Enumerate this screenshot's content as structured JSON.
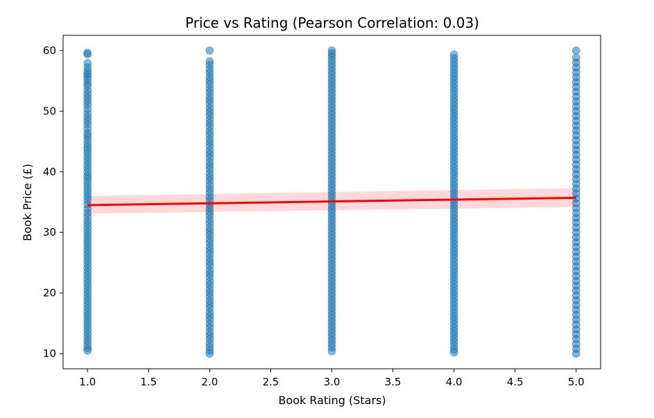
{
  "chart_data": {
    "type": "scatter",
    "title": "Price vs Rating (Pearson Correlation: 0.03)",
    "xlabel": "Book Rating (Stars)",
    "ylabel": "Book Price (£)",
    "xlim": [
      0.8,
      5.2
    ],
    "ylim": [
      7.5,
      62.5
    ],
    "xticks": [
      1.0,
      1.5,
      2.0,
      2.5,
      3.0,
      3.5,
      4.0,
      4.5,
      5.0
    ],
    "xtick_labels": [
      "1.0",
      "1.5",
      "2.0",
      "2.5",
      "3.0",
      "3.5",
      "4.0",
      "4.5",
      "5.0"
    ],
    "yticks": [
      10,
      20,
      30,
      40,
      50,
      60
    ],
    "ytick_labels": [
      "10",
      "20",
      "30",
      "40",
      "50",
      "60"
    ],
    "grid": false,
    "legend": false,
    "marker_color": "#1f77b4",
    "marker_alpha": 0.55,
    "line_color": "#ff0000",
    "band_color": "#ff0000",
    "series": [
      {
        "x": 1,
        "y": [
          59.6,
          59.4,
          57.9,
          57.2,
          56.6,
          56.1,
          55.7,
          55.2,
          54.6,
          54.1,
          53.4,
          52.8,
          52.2,
          51.6,
          51.0,
          50.3,
          49.6,
          49.0,
          48.4,
          47.8,
          47.1,
          46.4,
          45.9,
          45.3,
          44.7,
          44.1,
          43.6,
          43.0,
          42.4,
          41.8,
          41.2,
          40.6,
          40.0,
          39.4,
          38.9,
          38.3,
          37.7,
          37.1,
          36.5,
          35.9,
          35.3,
          34.6,
          33.9,
          33.2,
          32.6,
          31.9,
          31.3,
          30.7,
          30.1,
          29.5,
          28.9,
          28.3,
          27.7,
          27.1,
          26.5,
          25.9,
          25.3,
          24.7,
          24.1,
          23.5,
          22.9,
          22.3,
          21.7,
          21.1,
          20.5,
          19.9,
          19.3,
          18.7,
          18.1,
          17.5,
          16.9,
          16.3,
          15.7,
          15.1,
          14.5,
          13.9,
          13.3,
          12.7,
          12.1,
          11.5,
          10.9,
          10.5
        ]
      },
      {
        "x": 2,
        "y": [
          60.0,
          58.2,
          57.6,
          56.9,
          56.3,
          55.6,
          55.0,
          54.4,
          53.7,
          53.1,
          52.4,
          51.8,
          51.2,
          50.5,
          49.9,
          49.3,
          48.6,
          48.0,
          47.4,
          46.7,
          46.1,
          45.4,
          44.8,
          44.2,
          43.5,
          42.9,
          42.3,
          41.6,
          41.0,
          40.4,
          39.7,
          39.1,
          38.5,
          37.8,
          37.2,
          36.6,
          35.9,
          35.3,
          34.6,
          34.0,
          33.4,
          32.8,
          32.1,
          31.5,
          30.8,
          30.2,
          29.6,
          28.9,
          28.3,
          27.6,
          27.0,
          26.4,
          25.7,
          25.1,
          24.5,
          23.8,
          23.2,
          22.6,
          21.9,
          21.3,
          20.6,
          20.0,
          19.4,
          18.7,
          18.1,
          17.5,
          16.8,
          16.2,
          15.6,
          14.9,
          14.3,
          13.6,
          13.0,
          12.4,
          11.7,
          11.1,
          10.5,
          10.0
        ]
      },
      {
        "x": 3,
        "y": [
          60.0,
          59.5,
          59.0,
          58.4,
          57.8,
          57.2,
          56.6,
          56.0,
          55.4,
          54.8,
          54.2,
          53.6,
          53.0,
          52.4,
          51.8,
          51.2,
          50.6,
          50.0,
          49.4,
          48.8,
          48.2,
          47.6,
          47.0,
          46.4,
          45.8,
          45.2,
          44.6,
          44.0,
          43.4,
          42.8,
          42.2,
          41.6,
          41.0,
          40.4,
          39.8,
          39.2,
          38.6,
          38.0,
          37.4,
          36.8,
          36.2,
          35.6,
          35.0,
          34.4,
          33.8,
          33.2,
          32.6,
          32.0,
          31.4,
          30.8,
          30.2,
          29.6,
          29.0,
          28.4,
          27.8,
          27.2,
          26.6,
          26.0,
          25.4,
          24.8,
          24.2,
          23.6,
          23.0,
          22.4,
          21.8,
          21.2,
          20.6,
          20.0,
          19.4,
          18.8,
          18.2,
          17.6,
          17.0,
          16.4,
          15.8,
          15.2,
          14.6,
          14.0,
          13.4,
          12.8,
          12.2,
          11.6,
          11.0,
          10.4
        ]
      },
      {
        "x": 4,
        "y": [
          59.3,
          58.7,
          58.1,
          57.5,
          56.9,
          56.3,
          55.7,
          55.1,
          54.5,
          53.9,
          53.3,
          52.7,
          52.1,
          51.5,
          50.9,
          50.3,
          49.7,
          49.1,
          48.5,
          47.9,
          47.3,
          46.7,
          46.1,
          45.5,
          44.9,
          44.3,
          43.7,
          43.1,
          42.5,
          41.9,
          41.3,
          40.7,
          40.1,
          39.5,
          38.9,
          38.3,
          37.7,
          37.1,
          36.5,
          35.9,
          35.3,
          34.7,
          34.1,
          33.5,
          32.9,
          32.3,
          31.7,
          31.1,
          30.5,
          29.9,
          29.3,
          28.7,
          28.1,
          27.5,
          26.9,
          26.3,
          25.7,
          25.1,
          24.5,
          23.9,
          23.3,
          22.7,
          22.1,
          21.5,
          20.9,
          20.3,
          19.7,
          19.1,
          18.5,
          17.9,
          17.3,
          16.7,
          16.1,
          15.5,
          14.9,
          14.3,
          13.7,
          13.1,
          12.5,
          11.9,
          11.3,
          10.7,
          10.2
        ]
      },
      {
        "x": 5,
        "y": [
          60.0,
          58.8,
          58.0,
          57.2,
          56.4,
          55.6,
          54.8,
          54.0,
          53.2,
          52.4,
          51.6,
          50.8,
          50.0,
          49.2,
          48.4,
          47.6,
          46.8,
          46.0,
          45.2,
          44.4,
          43.6,
          42.8,
          42.0,
          41.2,
          40.4,
          39.6,
          38.8,
          38.0,
          37.2,
          36.4,
          35.6,
          34.8,
          34.0,
          33.2,
          32.4,
          31.6,
          30.8,
          30.0,
          29.2,
          28.4,
          27.6,
          26.8,
          26.0,
          25.2,
          24.4,
          23.6,
          22.8,
          22.0,
          21.2,
          20.4,
          19.6,
          18.8,
          18.0,
          17.2,
          16.4,
          15.6,
          14.8,
          14.0,
          13.2,
          12.4,
          11.6,
          10.8,
          10.0
        ]
      }
    ],
    "regression": {
      "x": [
        1.0,
        5.0
      ],
      "y": [
        34.5,
        35.7
      ],
      "ci_low": [
        33.1,
        34.2
      ],
      "ci_high": [
        36.0,
        37.3
      ]
    }
  }
}
